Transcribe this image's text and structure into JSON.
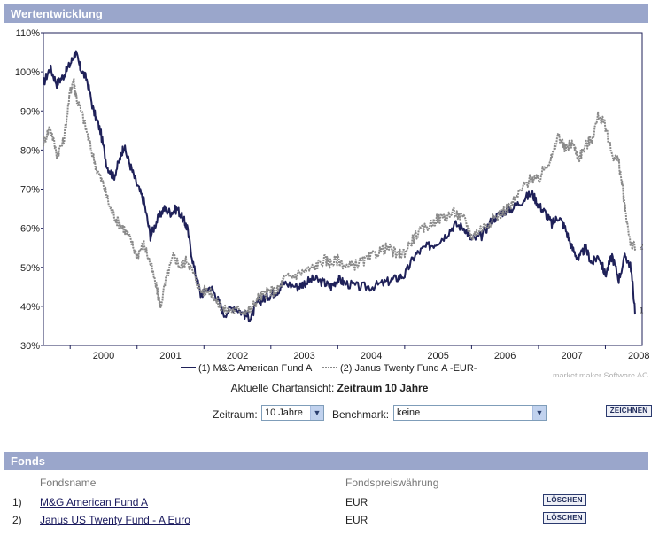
{
  "header": {
    "title": "Wertentwicklung"
  },
  "chart_data": {
    "type": "line",
    "y_ticks": [
      "110%",
      "100%",
      "90%",
      "80%",
      "70%",
      "60%",
      "50%",
      "40%",
      "30%"
    ],
    "x_ticks": [
      "2000",
      "2001",
      "2002",
      "2003",
      "2004",
      "2005",
      "2006",
      "2007",
      "2008"
    ],
    "ylim": [
      30,
      110
    ],
    "xlim": [
      1999.6,
      2008.55
    ],
    "series": [
      {
        "name": "M&G American Fund A",
        "index_label": "(1)",
        "end_marker": "1",
        "color": "#1f2159",
        "points": [
          [
            1999.6,
            97
          ],
          [
            1999.7,
            101
          ],
          [
            1999.8,
            97
          ],
          [
            1999.9,
            99
          ],
          [
            2000.0,
            102
          ],
          [
            2000.08,
            105
          ],
          [
            2000.15,
            101
          ],
          [
            2000.25,
            98
          ],
          [
            2000.35,
            90
          ],
          [
            2000.45,
            85
          ],
          [
            2000.55,
            76
          ],
          [
            2000.65,
            73
          ],
          [
            2000.75,
            78
          ],
          [
            2000.8,
            81
          ],
          [
            2000.9,
            76
          ],
          [
            2001.0,
            71
          ],
          [
            2001.1,
            67
          ],
          [
            2001.2,
            58
          ],
          [
            2001.3,
            62
          ],
          [
            2001.4,
            65
          ],
          [
            2001.5,
            64
          ],
          [
            2001.6,
            65
          ],
          [
            2001.7,
            62
          ],
          [
            2001.75,
            60
          ],
          [
            2001.85,
            50
          ],
          [
            2001.95,
            43
          ],
          [
            2002.1,
            45
          ],
          [
            2002.2,
            42
          ],
          [
            2002.3,
            38
          ],
          [
            2002.45,
            40
          ],
          [
            2002.6,
            38
          ],
          [
            2002.7,
            37
          ],
          [
            2002.8,
            41
          ],
          [
            2002.9,
            42
          ],
          [
            2003.0,
            43
          ],
          [
            2003.1,
            44
          ],
          [
            2003.2,
            46
          ],
          [
            2003.4,
            45
          ],
          [
            2003.5,
            46
          ],
          [
            2003.65,
            47
          ],
          [
            2003.8,
            46
          ],
          [
            2003.9,
            45
          ],
          [
            2004.0,
            47
          ],
          [
            2004.1,
            46
          ],
          [
            2004.3,
            45
          ],
          [
            2004.5,
            45
          ],
          [
            2004.7,
            46
          ],
          [
            2004.85,
            47
          ],
          [
            2005.0,
            48
          ],
          [
            2005.15,
            53
          ],
          [
            2005.3,
            55
          ],
          [
            2005.45,
            56
          ],
          [
            2005.6,
            58
          ],
          [
            2005.75,
            61
          ],
          [
            2005.9,
            60
          ],
          [
            2006.0,
            57
          ],
          [
            2006.15,
            58
          ],
          [
            2006.3,
            62
          ],
          [
            2006.45,
            64
          ],
          [
            2006.6,
            65
          ],
          [
            2006.75,
            67
          ],
          [
            2006.9,
            69
          ],
          [
            2007.0,
            66
          ],
          [
            2007.1,
            64
          ],
          [
            2007.2,
            61
          ],
          [
            2007.3,
            63
          ],
          [
            2007.4,
            60
          ],
          [
            2007.5,
            55
          ],
          [
            2007.6,
            52
          ],
          [
            2007.7,
            55
          ],
          [
            2007.8,
            51
          ],
          [
            2007.9,
            53
          ],
          [
            2008.0,
            48
          ],
          [
            2008.1,
            53
          ],
          [
            2008.2,
            47
          ],
          [
            2008.3,
            53
          ],
          [
            2008.38,
            50
          ],
          [
            2008.45,
            38
          ]
        ]
      },
      {
        "name": "Janus Twenty Fund A -EUR-",
        "index_label": "(2)",
        "end_marker": "2",
        "color": "#8a8a8a",
        "points": [
          [
            1999.6,
            82
          ],
          [
            1999.7,
            86
          ],
          [
            1999.8,
            79
          ],
          [
            1999.9,
            82
          ],
          [
            2000.0,
            95
          ],
          [
            2000.05,
            98
          ],
          [
            2000.1,
            93
          ],
          [
            2000.2,
            88
          ],
          [
            2000.3,
            81
          ],
          [
            2000.4,
            75
          ],
          [
            2000.5,
            71
          ],
          [
            2000.6,
            65
          ],
          [
            2000.7,
            62
          ],
          [
            2000.8,
            60
          ],
          [
            2000.9,
            57
          ],
          [
            2001.0,
            53
          ],
          [
            2001.1,
            56
          ],
          [
            2001.2,
            51
          ],
          [
            2001.3,
            44
          ],
          [
            2001.35,
            40
          ],
          [
            2001.45,
            48
          ],
          [
            2001.55,
            53
          ],
          [
            2001.65,
            50
          ],
          [
            2001.75,
            52
          ],
          [
            2001.85,
            48
          ],
          [
            2001.95,
            44
          ],
          [
            2002.1,
            44
          ],
          [
            2002.2,
            41
          ],
          [
            2002.3,
            39
          ],
          [
            2002.45,
            39
          ],
          [
            2002.6,
            39
          ],
          [
            2002.7,
            39
          ],
          [
            2002.8,
            42
          ],
          [
            2002.9,
            43
          ],
          [
            2003.0,
            44
          ],
          [
            2003.1,
            44
          ],
          [
            2003.2,
            47
          ],
          [
            2003.35,
            48
          ],
          [
            2003.5,
            49
          ],
          [
            2003.65,
            50
          ],
          [
            2003.8,
            52
          ],
          [
            2003.9,
            51
          ],
          [
            2004.0,
            52
          ],
          [
            2004.15,
            50
          ],
          [
            2004.3,
            51
          ],
          [
            2004.45,
            52
          ],
          [
            2004.6,
            54
          ],
          [
            2004.75,
            55
          ],
          [
            2004.9,
            53
          ],
          [
            2005.0,
            54
          ],
          [
            2005.15,
            58
          ],
          [
            2005.3,
            60
          ],
          [
            2005.45,
            62
          ],
          [
            2005.6,
            63
          ],
          [
            2005.75,
            64
          ],
          [
            2005.9,
            62
          ],
          [
            2006.0,
            58
          ],
          [
            2006.15,
            60
          ],
          [
            2006.3,
            62
          ],
          [
            2006.45,
            64
          ],
          [
            2006.6,
            66
          ],
          [
            2006.75,
            70
          ],
          [
            2006.9,
            73
          ],
          [
            2007.0,
            72
          ],
          [
            2007.1,
            76
          ],
          [
            2007.2,
            78
          ],
          [
            2007.3,
            84
          ],
          [
            2007.4,
            80
          ],
          [
            2007.5,
            82
          ],
          [
            2007.6,
            78
          ],
          [
            2007.7,
            81
          ],
          [
            2007.8,
            83
          ],
          [
            2007.9,
            89
          ],
          [
            2008.0,
            86
          ],
          [
            2008.1,
            79
          ],
          [
            2008.2,
            77
          ],
          [
            2008.25,
            71
          ],
          [
            2008.3,
            64
          ],
          [
            2008.38,
            56
          ],
          [
            2008.45,
            55
          ]
        ]
      }
    ],
    "watermark": "market maker Software AG",
    "caption_prefix": "Aktuelle Chartansicht:",
    "caption_value": "Zeitraum 10 Jahre"
  },
  "controls": {
    "period_label": "Zeitraum:",
    "period_value": "10 Jahre",
    "benchmark_label": "Benchmark:",
    "benchmark_value": "keine",
    "draw_button": "ZEICHNEN"
  },
  "fonds": {
    "title": "Fonds",
    "col_name": "Fondsname",
    "col_currency": "Fondspreiswährung",
    "rows": [
      {
        "index": "1)",
        "name": "M&G American Fund A",
        "currency": "EUR",
        "delete": "LÖSCHEN"
      },
      {
        "index": "2)",
        "name": "Janus US Twenty Fund - A Euro",
        "currency": "EUR",
        "delete": "LÖSCHEN"
      }
    ]
  }
}
